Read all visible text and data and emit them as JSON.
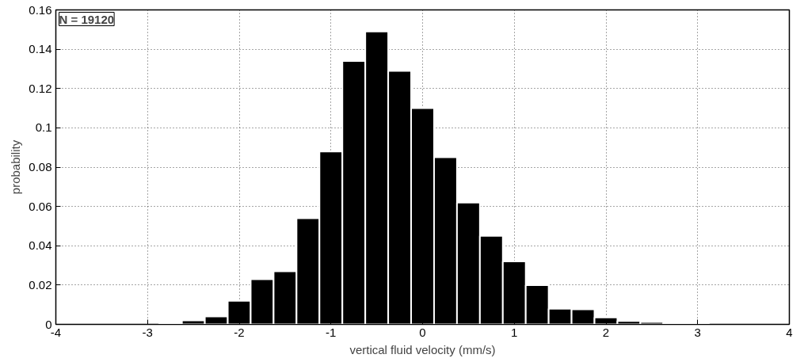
{
  "chart_data": {
    "type": "histogram",
    "xlabel": "vertical fluid velocity (mm/s)",
    "ylabel": "probability",
    "annotations": [
      "N = 19120"
    ],
    "bins": [
      -2.875,
      -2.625,
      -2.375,
      -2.125,
      -1.875,
      -1.625,
      -1.375,
      -1.125,
      -0.875,
      -0.625,
      -0.375,
      -0.125,
      0.125,
      0.375,
      0.625,
      0.875,
      1.125,
      1.375,
      1.625,
      1.875,
      2.125,
      2.375,
      2.625,
      2.875,
      3.125
    ],
    "values": [
      0.0003,
      0.002,
      0.004,
      0.012,
      0.023,
      0.027,
      0.054,
      0.088,
      0.134,
      0.149,
      0.129,
      0.11,
      0.085,
      0.062,
      0.045,
      0.032,
      0.02,
      0.008,
      0.0077,
      0.0035,
      0.0017,
      0.0012,
      0.0007,
      0.0003
    ],
    "color": "#000000",
    "xlim": [
      -4,
      4
    ],
    "ylim": [
      0,
      0.16
    ],
    "xticks": [
      -4,
      -3,
      -2,
      -1,
      0,
      1,
      2,
      3,
      4
    ],
    "yticks": [
      0,
      0.02,
      0.04,
      0.06,
      0.08,
      0.1,
      0.12,
      0.14,
      0.16
    ],
    "grid": true
  }
}
